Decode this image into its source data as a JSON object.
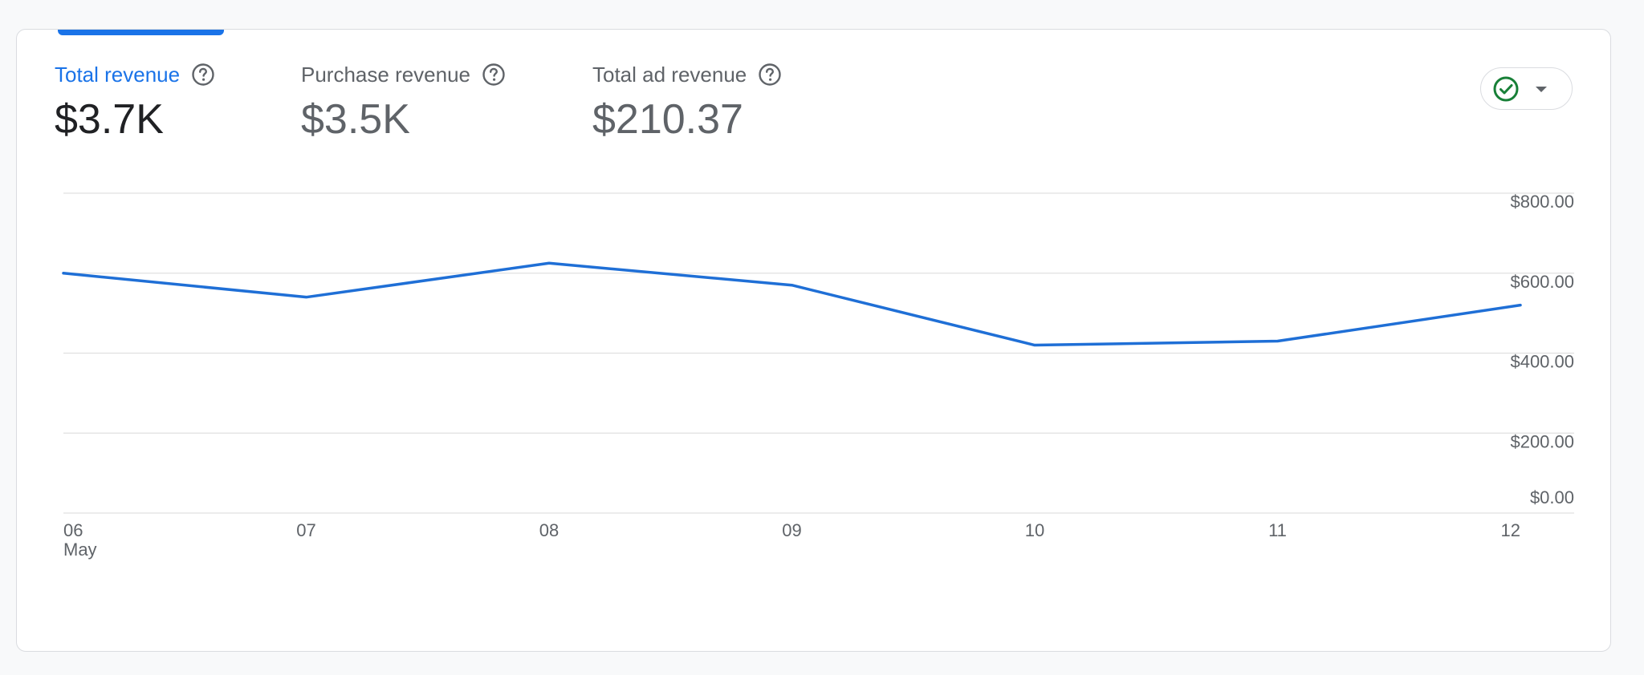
{
  "metrics": [
    {
      "label": "Total revenue",
      "value": "$3.7K",
      "active": true
    },
    {
      "label": "Purchase revenue",
      "value": "$3.5K",
      "active": false
    },
    {
      "label": "Total ad revenue",
      "value": "$210.37",
      "active": false
    }
  ],
  "colors": {
    "accent": "#1a73e8",
    "line": "#1f6fd6",
    "check": "#188038",
    "grid": "#e0e0e0",
    "axis_text": "#5f6368"
  },
  "icons": {
    "help": "help-circle-icon",
    "compare": "check-circle-icon",
    "dropdown": "caret-down-icon"
  },
  "chart_data": {
    "type": "line",
    "x": [
      "06",
      "07",
      "08",
      "09",
      "10",
      "11",
      "12"
    ],
    "x_sublabel": "May",
    "series": [
      {
        "values": [
          600,
          540,
          625,
          570,
          420,
          430,
          520
        ]
      }
    ],
    "yticks": [
      "$0.00",
      "$200.00",
      "$400.00",
      "$600.00",
      "$800.00"
    ],
    "ylim": [
      0,
      800
    ],
    "grid": true
  }
}
